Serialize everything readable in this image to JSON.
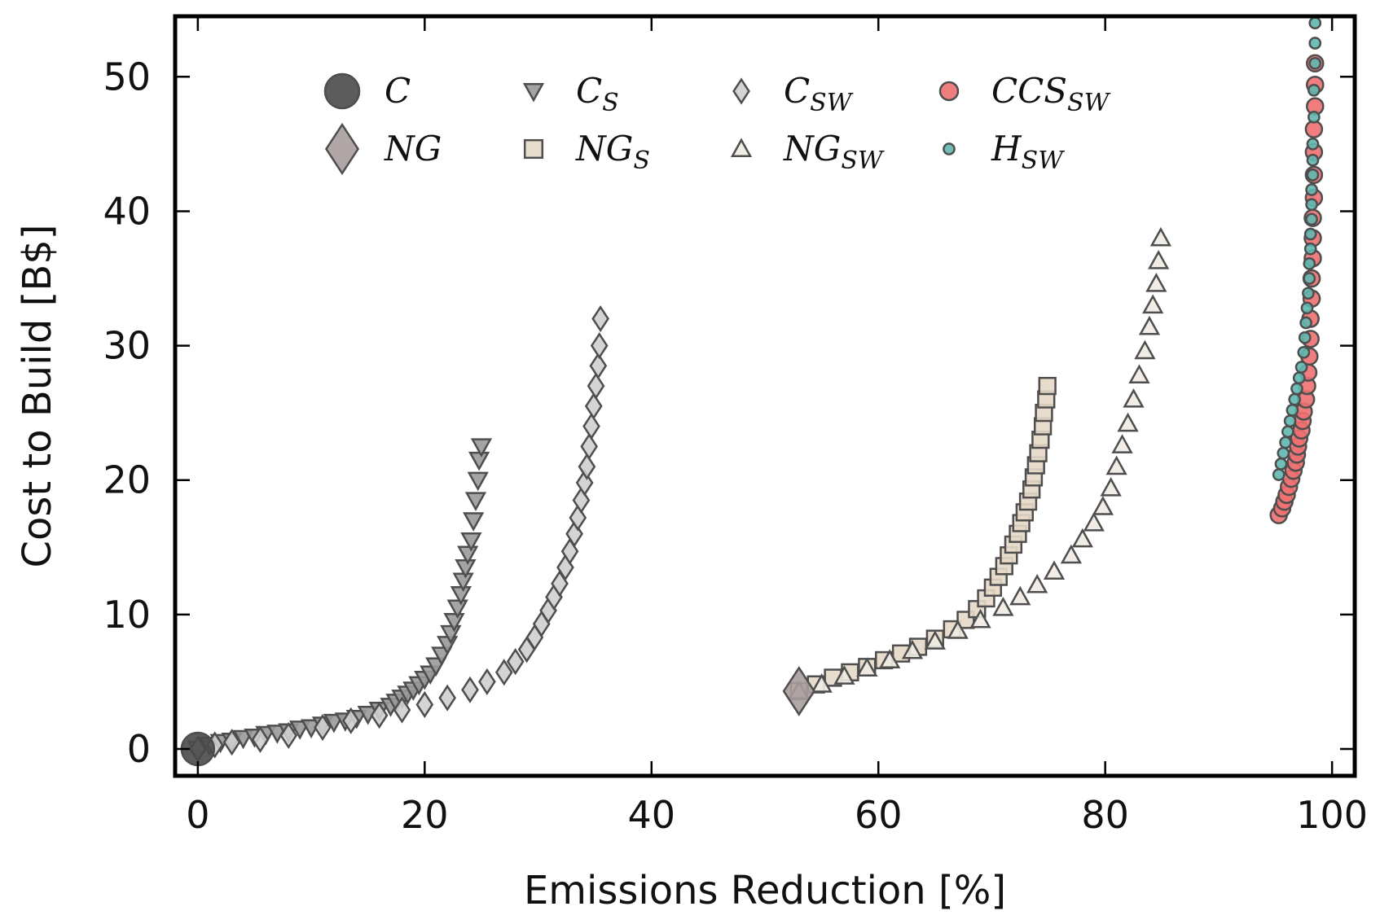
{
  "chart_data": {
    "type": "scatter",
    "title": "",
    "xlabel": "Emissions Reduction [%]",
    "ylabel": "Cost to Build [B$]",
    "xlim": [
      -2,
      102
    ],
    "ylim": [
      -2,
      54.5
    ],
    "xticks": [
      0,
      20,
      40,
      60,
      80,
      100
    ],
    "yticks": [
      0,
      10,
      20,
      30,
      40,
      50
    ],
    "grid": false,
    "legend_position": "top",
    "series": [
      {
        "name": "C",
        "label_main": "C",
        "label_sub": "",
        "marker": "circle",
        "color": "#4a4a4a",
        "points": [
          [
            0,
            0
          ]
        ]
      },
      {
        "name": "NG",
        "label_main": "NG",
        "label_sub": "",
        "marker": "diamond",
        "color": "#a89d9d",
        "points": [
          [
            53,
            4.3
          ]
        ]
      },
      {
        "name": "C_S",
        "label_main": "C",
        "label_sub": "S",
        "marker": "triangle-down",
        "color": "#9a9a9a",
        "points": [
          [
            0,
            0
          ],
          [
            1,
            0.3
          ],
          [
            2,
            0.5
          ],
          [
            3,
            0.6
          ],
          [
            4,
            0.8
          ],
          [
            5,
            0.9
          ],
          [
            6,
            1.1
          ],
          [
            7,
            1.2
          ],
          [
            8,
            1.3
          ],
          [
            9,
            1.5
          ],
          [
            10,
            1.6
          ],
          [
            11,
            1.8
          ],
          [
            12,
            2.0
          ],
          [
            13,
            2.1
          ],
          [
            14,
            2.3
          ],
          [
            15,
            2.6
          ],
          [
            16,
            2.9
          ],
          [
            17,
            3.2
          ],
          [
            17.5,
            3.5
          ],
          [
            18,
            3.8
          ],
          [
            18.5,
            4.1
          ],
          [
            19,
            4.4
          ],
          [
            19.5,
            4.8
          ],
          [
            20,
            5.2
          ],
          [
            20.5,
            5.6
          ],
          [
            21,
            6.2
          ],
          [
            21.5,
            7.0
          ],
          [
            22,
            7.8
          ],
          [
            22.3,
            8.6
          ],
          [
            22.6,
            9.5
          ],
          [
            22.9,
            10.5
          ],
          [
            23.2,
            11.5
          ],
          [
            23.4,
            12.5
          ],
          [
            23.6,
            13.5
          ],
          [
            23.8,
            14.5
          ],
          [
            24.1,
            15.5
          ],
          [
            24.3,
            17.0
          ],
          [
            24.5,
            18.5
          ],
          [
            24.7,
            20.0
          ],
          [
            24.8,
            21.5
          ],
          [
            25.0,
            22.5
          ]
        ]
      },
      {
        "name": "C_SW",
        "label_main": "C",
        "label_sub": "SW",
        "marker": "diamond",
        "color": "#cfcfcf",
        "points": [
          [
            0,
            0
          ],
          [
            1.5,
            0.3
          ],
          [
            3,
            0.5
          ],
          [
            5.5,
            0.7
          ],
          [
            8,
            1.0
          ],
          [
            11,
            1.6
          ],
          [
            13.5,
            2.1
          ],
          [
            16,
            2.5
          ],
          [
            18,
            2.9
          ],
          [
            20,
            3.3
          ],
          [
            22,
            3.8
          ],
          [
            24,
            4.4
          ],
          [
            25.5,
            5.0
          ],
          [
            27,
            5.7
          ],
          [
            28,
            6.5
          ],
          [
            29,
            7.4
          ],
          [
            29.7,
            8.3
          ],
          [
            30.3,
            9.3
          ],
          [
            30.9,
            10.3
          ],
          [
            31.4,
            11.3
          ],
          [
            31.9,
            12.3
          ],
          [
            32.4,
            13.5
          ],
          [
            32.8,
            14.7
          ],
          [
            33.2,
            16.0
          ],
          [
            33.5,
            17.2
          ],
          [
            33.8,
            18.5
          ],
          [
            34.1,
            19.8
          ],
          [
            34.3,
            21.0
          ],
          [
            34.5,
            22.5
          ],
          [
            34.7,
            24.0
          ],
          [
            34.9,
            25.5
          ],
          [
            35.1,
            27.0
          ],
          [
            35.3,
            28.5
          ],
          [
            35.4,
            30.0
          ],
          [
            35.5,
            32.0
          ]
        ]
      },
      {
        "name": "NG_S",
        "label_main": "NG",
        "label_sub": "S",
        "marker": "square",
        "color": "#e6d8c8",
        "points": [
          [
            53,
            4.3
          ],
          [
            54.5,
            4.8
          ],
          [
            56,
            5.3
          ],
          [
            57.5,
            5.7
          ],
          [
            59,
            6.1
          ],
          [
            60.5,
            6.6
          ],
          [
            62,
            7.1
          ],
          [
            63.5,
            7.6
          ],
          [
            65,
            8.2
          ],
          [
            66.5,
            8.9
          ],
          [
            67.7,
            9.6
          ],
          [
            68.7,
            10.4
          ],
          [
            69.5,
            11.2
          ],
          [
            70.1,
            12.0
          ],
          [
            70.6,
            12.8
          ],
          [
            71.1,
            13.6
          ],
          [
            71.5,
            14.4
          ],
          [
            71.9,
            15.2
          ],
          [
            72.3,
            16.0
          ],
          [
            72.6,
            16.8
          ],
          [
            72.9,
            17.6
          ],
          [
            73.2,
            18.4
          ],
          [
            73.5,
            19.3
          ],
          [
            73.7,
            20.2
          ],
          [
            73.9,
            21.1
          ],
          [
            74.1,
            22.0
          ],
          [
            74.3,
            23.0
          ],
          [
            74.5,
            24.0
          ],
          [
            74.6,
            25.0
          ],
          [
            74.8,
            26.0
          ],
          [
            74.9,
            27.0
          ]
        ]
      },
      {
        "name": "NG_SW",
        "label_main": "NG",
        "label_sub": "SW",
        "marker": "triangle-up",
        "color": "#f0ebe3",
        "points": [
          [
            53,
            4.3
          ],
          [
            55,
            4.8
          ],
          [
            57,
            5.4
          ],
          [
            59,
            6.0
          ],
          [
            61,
            6.6
          ],
          [
            63,
            7.3
          ],
          [
            65,
            8.0
          ],
          [
            67,
            8.8
          ],
          [
            69,
            9.6
          ],
          [
            71,
            10.5
          ],
          [
            72.5,
            11.3
          ],
          [
            74,
            12.2
          ],
          [
            75.5,
            13.2
          ],
          [
            77,
            14.4
          ],
          [
            78,
            15.6
          ],
          [
            79,
            16.8
          ],
          [
            79.8,
            18.0
          ],
          [
            80.5,
            19.4
          ],
          [
            81,
            21.0
          ],
          [
            81.5,
            22.6
          ],
          [
            82,
            24.2
          ],
          [
            82.5,
            26.0
          ],
          [
            83,
            27.8
          ],
          [
            83.5,
            29.6
          ],
          [
            83.9,
            31.4
          ],
          [
            84.2,
            33.0
          ],
          [
            84.5,
            34.6
          ],
          [
            84.7,
            36.3
          ],
          [
            84.9,
            38.0
          ]
        ]
      },
      {
        "name": "CCS_SW",
        "label_main": "CCS",
        "label_sub": "SW",
        "marker": "circle",
        "color": "#f07070",
        "points": [
          [
            95.3,
            17.4
          ],
          [
            95.6,
            17.9
          ],
          [
            95.8,
            18.4
          ],
          [
            96.0,
            18.9
          ],
          [
            96.2,
            19.5
          ],
          [
            96.4,
            20.1
          ],
          [
            96.6,
            20.7
          ],
          [
            96.8,
            21.3
          ],
          [
            96.9,
            21.9
          ],
          [
            97.0,
            22.5
          ],
          [
            97.1,
            23.1
          ],
          [
            97.3,
            23.7
          ],
          [
            97.4,
            24.4
          ],
          [
            97.5,
            25.1
          ],
          [
            97.7,
            26.0
          ],
          [
            97.8,
            27.0
          ],
          [
            97.9,
            28.0
          ],
          [
            98.0,
            29.2
          ],
          [
            98.1,
            30.5
          ],
          [
            98.1,
            32.0
          ],
          [
            98.2,
            33.5
          ],
          [
            98.2,
            35.0
          ],
          [
            98.3,
            36.5
          ],
          [
            98.3,
            38.0
          ],
          [
            98.3,
            39.5
          ],
          [
            98.4,
            41.0
          ],
          [
            98.4,
            42.7
          ],
          [
            98.4,
            44.4
          ],
          [
            98.4,
            46.1
          ],
          [
            98.5,
            47.8
          ],
          [
            98.5,
            49.4
          ],
          [
            98.5,
            51.0
          ]
        ]
      },
      {
        "name": "H_SW",
        "label_main": "H",
        "label_sub": "SW",
        "marker": "circle-small",
        "color": "#5fb8b0",
        "points": [
          [
            95.3,
            20.4
          ],
          [
            95.5,
            21.2
          ],
          [
            95.7,
            22.0
          ],
          [
            95.9,
            22.8
          ],
          [
            96.1,
            23.6
          ],
          [
            96.3,
            24.4
          ],
          [
            96.5,
            25.2
          ],
          [
            96.7,
            26.0
          ],
          [
            96.9,
            26.8
          ],
          [
            97.1,
            27.6
          ],
          [
            97.3,
            28.4
          ],
          [
            97.5,
            29.5
          ],
          [
            97.6,
            30.6
          ],
          [
            97.7,
            31.7
          ],
          [
            97.8,
            32.8
          ],
          [
            97.9,
            33.9
          ],
          [
            98.0,
            35.0
          ],
          [
            98.0,
            36.1
          ],
          [
            98.1,
            37.2
          ],
          [
            98.1,
            38.3
          ],
          [
            98.2,
            39.4
          ],
          [
            98.2,
            40.5
          ],
          [
            98.2,
            41.6
          ],
          [
            98.3,
            42.7
          ],
          [
            98.3,
            43.8
          ],
          [
            98.3,
            45.0
          ],
          [
            98.4,
            47.0
          ],
          [
            98.4,
            49.0
          ],
          [
            98.5,
            51.0
          ],
          [
            98.5,
            52.5
          ],
          [
            98.5,
            54.0
          ]
        ]
      }
    ]
  }
}
